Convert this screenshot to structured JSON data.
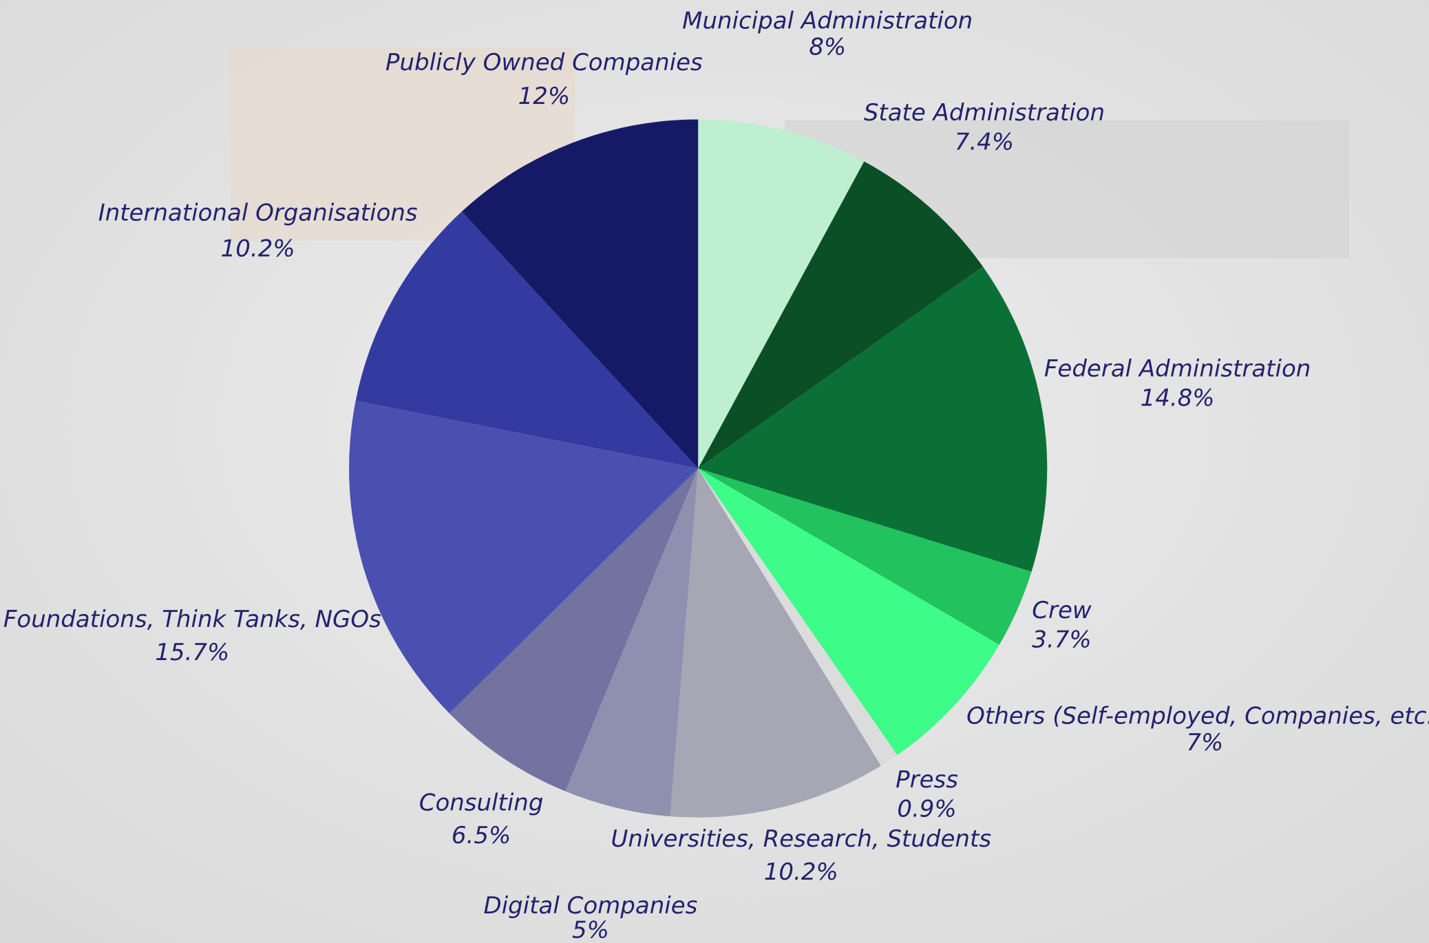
{
  "chart_data": {
    "type": "pie",
    "categories": [
      "Municipal Administration",
      "State Administration",
      "Federal Administration",
      "Crew",
      "Others (Self-employed, Companies, etc.)",
      "Press",
      "Universities, Research, Students",
      "Digital Companies",
      "Consulting",
      "Foundations, Think Tanks, NGOs",
      "International Organisations",
      "Publicly Owned Companies"
    ],
    "values": [
      8,
      7.4,
      14.8,
      3.7,
      7,
      0.9,
      10.2,
      5,
      6.5,
      15.7,
      10.2,
      12
    ],
    "value_labels": [
      "8%",
      "7.4%",
      "14.8%",
      "3.7%",
      "7%",
      "0.9%",
      "10.2%",
      "5%",
      "6.5%",
      "15.7%",
      "10.2%",
      "12%"
    ],
    "colors": [
      "#bdefd0",
      "#0b4f27",
      "#0b7035",
      "#22c25f",
      "#3dfc88",
      "#dcdcdc",
      "#a6a6b4",
      "#8f90b0",
      "#7273a0",
      "#4a50b0",
      "#343ba0",
      "#161a66"
    ]
  }
}
